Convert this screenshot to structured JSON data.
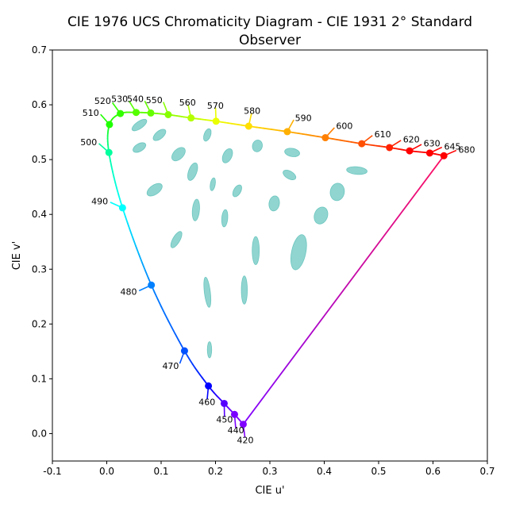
{
  "chart_data": {
    "type": "scatter",
    "title": "CIE 1976 UCS Chromaticity Diagram - CIE 1931 2° Standard",
    "subtitle": "Observer",
    "xlabel": "CIE u'",
    "ylabel": "CIE v'",
    "xlim": [
      -0.1,
      0.7
    ],
    "ylim": [
      -0.05,
      0.7
    ],
    "xticks": [
      "-0.1",
      "0.0",
      "0.1",
      "0.2",
      "0.3",
      "0.4",
      "0.5",
      "0.6",
      "0.7"
    ],
    "yticks": [
      "0.0",
      "0.1",
      "0.2",
      "0.3",
      "0.4",
      "0.5",
      "0.6",
      "0.7"
    ],
    "grid": false,
    "spectral_locus": [
      {
        "label": "420",
        "u": 0.251,
        "v": 0.017,
        "color": "#8000ff"
      },
      {
        "label": "440",
        "u": 0.235,
        "v": 0.035,
        "color": "#7a00ff"
      },
      {
        "label": "450",
        "u": 0.216,
        "v": 0.055,
        "color": "#5500ff"
      },
      {
        "label": "460",
        "u": 0.187,
        "v": 0.087,
        "color": "#0000ff"
      },
      {
        "label": "470",
        "u": 0.143,
        "v": 0.151,
        "color": "#0051ff"
      },
      {
        "label": "480",
        "u": 0.082,
        "v": 0.271,
        "color": "#0080ff"
      },
      {
        "label": "490",
        "u": 0.029,
        "v": 0.412,
        "color": "#00ffff"
      },
      {
        "label": "500",
        "u": 0.004,
        "v": 0.513,
        "color": "#00ff9e"
      },
      {
        "label": "510",
        "u": 0.005,
        "v": 0.564,
        "color": "#1fff00"
      },
      {
        "label": "520",
        "u": 0.025,
        "v": 0.584,
        "color": "#33ff00"
      },
      {
        "label": "530",
        "u": 0.054,
        "v": 0.586,
        "color": "#55ff00"
      },
      {
        "label": "540",
        "u": 0.081,
        "v": 0.585,
        "color": "#65ff00"
      },
      {
        "label": "550",
        "u": 0.113,
        "v": 0.582,
        "color": "#88ff00"
      },
      {
        "label": "560",
        "u": 0.155,
        "v": 0.576,
        "color": "#b3ff00"
      },
      {
        "label": "570",
        "u": 0.201,
        "v": 0.57,
        "color": "#eaff00"
      },
      {
        "label": "580",
        "u": 0.261,
        "v": 0.561,
        "color": "#ffdf00"
      },
      {
        "label": "590",
        "u": 0.332,
        "v": 0.551,
        "color": "#ffb000"
      },
      {
        "label": "600",
        "u": 0.402,
        "v": 0.54,
        "color": "#ff8000"
      },
      {
        "label": "610",
        "u": 0.469,
        "v": 0.529,
        "color": "#ff4f00"
      },
      {
        "label": "620",
        "u": 0.52,
        "v": 0.522,
        "color": "#ff2100"
      },
      {
        "label": "630",
        "u": 0.557,
        "v": 0.516,
        "color": "#ff0000"
      },
      {
        "label": "645",
        "u": 0.594,
        "v": 0.512,
        "color": "#ff0000"
      },
      {
        "label": "680",
        "u": 0.62,
        "v": 0.507,
        "color": "#ff0000"
      }
    ],
    "purple_line": {
      "from": [
        0.251,
        0.017
      ],
      "to": [
        0.62,
        0.507
      ],
      "colors": [
        "#8000ff",
        "#ff1060"
      ]
    },
    "ellipse_color": "#48b9b0",
    "ellipses": [
      {
        "u": 0.06,
        "v": 0.563,
        "a": 0.016,
        "b": 0.0065,
        "angle": -35
      },
      {
        "u": 0.097,
        "v": 0.545,
        "a": 0.014,
        "b": 0.007,
        "angle": -40
      },
      {
        "u": 0.185,
        "v": 0.545,
        "a": 0.012,
        "b": 0.006,
        "angle": -70
      },
      {
        "u": 0.277,
        "v": 0.525,
        "a": 0.011,
        "b": 0.009,
        "angle": -75
      },
      {
        "u": 0.341,
        "v": 0.513,
        "a": 0.014,
        "b": 0.0075,
        "angle": 10
      },
      {
        "u": 0.46,
        "v": 0.48,
        "a": 0.019,
        "b": 0.007,
        "angle": 5
      },
      {
        "u": 0.06,
        "v": 0.522,
        "a": 0.013,
        "b": 0.007,
        "angle": -30
      },
      {
        "u": 0.132,
        "v": 0.51,
        "a": 0.015,
        "b": 0.009,
        "angle": -45
      },
      {
        "u": 0.222,
        "v": 0.507,
        "a": 0.014,
        "b": 0.008,
        "angle": -65
      },
      {
        "u": 0.336,
        "v": 0.472,
        "a": 0.013,
        "b": 0.007,
        "angle": 30
      },
      {
        "u": 0.158,
        "v": 0.478,
        "a": 0.017,
        "b": 0.0075,
        "angle": -70
      },
      {
        "u": 0.088,
        "v": 0.445,
        "a": 0.016,
        "b": 0.0085,
        "angle": -35
      },
      {
        "u": 0.195,
        "v": 0.455,
        "a": 0.012,
        "b": 0.0045,
        "angle": -80
      },
      {
        "u": 0.24,
        "v": 0.443,
        "a": 0.012,
        "b": 0.0065,
        "angle": -60
      },
      {
        "u": 0.424,
        "v": 0.441,
        "a": 0.013,
        "b": 0.016,
        "angle": 10
      },
      {
        "u": 0.308,
        "v": 0.42,
        "a": 0.014,
        "b": 0.0095,
        "angle": -80
      },
      {
        "u": 0.164,
        "v": 0.408,
        "a": 0.02,
        "b": 0.0065,
        "angle": -85
      },
      {
        "u": 0.217,
        "v": 0.393,
        "a": 0.016,
        "b": 0.0055,
        "angle": -85
      },
      {
        "u": 0.394,
        "v": 0.398,
        "a": 0.016,
        "b": 0.012,
        "angle": -70
      },
      {
        "u": 0.128,
        "v": 0.354,
        "a": 0.017,
        "b": 0.0065,
        "angle": -60
      },
      {
        "u": 0.274,
        "v": 0.334,
        "a": 0.026,
        "b": 0.0065,
        "angle": -90
      },
      {
        "u": 0.353,
        "v": 0.331,
        "a": 0.033,
        "b": 0.013,
        "angle": -78
      },
      {
        "u": 0.253,
        "v": 0.262,
        "a": 0.026,
        "b": 0.0055,
        "angle": -90
      },
      {
        "u": 0.185,
        "v": 0.258,
        "a": 0.028,
        "b": 0.0055,
        "angle": -97
      },
      {
        "u": 0.189,
        "v": 0.153,
        "a": 0.015,
        "b": 0.004,
        "angle": -90
      }
    ]
  }
}
